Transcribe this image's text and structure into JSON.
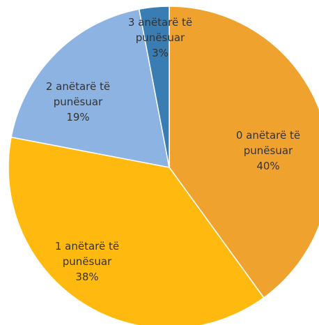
{
  "chart_data": {
    "type": "pie",
    "categories": [
      "0 anëtarë të punësuar",
      "1 anëtarë të punësuar",
      "2 anëtarë të punësuar",
      "3 anëtarë të punësuar"
    ],
    "values": [
      40,
      38,
      19,
      3
    ],
    "value_labels": [
      "40%",
      "38%",
      "19%",
      "3%"
    ],
    "colors": [
      "#f0a22e",
      "#ffb90f",
      "#8db3e2",
      "#3a7db3"
    ]
  }
}
